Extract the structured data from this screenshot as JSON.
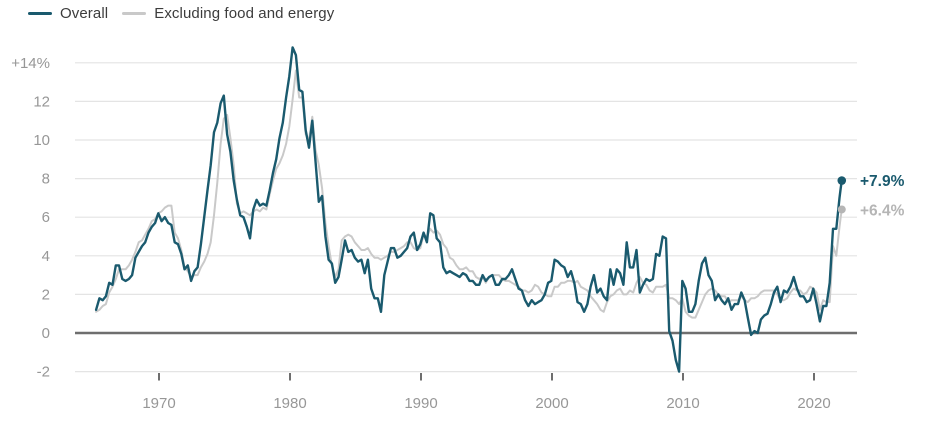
{
  "chart_data": {
    "type": "line",
    "description": "Year-over-year percent change in U.S. consumer prices, monthly, 1965 through February 2022",
    "x_axis": {
      "ticks": [
        1970,
        1980,
        1990,
        2000,
        2010,
        2020
      ],
      "range": [
        1964.6,
        2022.6
      ],
      "grid": false
    },
    "y_axis": {
      "ticks": [
        -2,
        0,
        2,
        4,
        6,
        8,
        10,
        12,
        14
      ],
      "tick_labels": [
        "-2",
        "0",
        "2",
        "4",
        "6",
        "8",
        "10",
        "12",
        "+14%"
      ],
      "range": [
        -2,
        14
      ],
      "grid": true,
      "zero_baseline": true
    },
    "x_rule": {
      "start": 1965.2,
      "step": 0.25,
      "tail_x": [
        2022.04,
        2022.12
      ]
    },
    "legend_position": "top-left",
    "series": [
      {
        "name": "Overall",
        "color": "#1a5a6e",
        "line_width": 2.4,
        "end_label": "+7.9%",
        "end_value": 7.9,
        "values": [
          1.2,
          1.8,
          1.7,
          1.9,
          2.6,
          2.5,
          3.5,
          3.5,
          2.8,
          2.7,
          2.8,
          3.0,
          3.9,
          4.2,
          4.5,
          4.7,
          5.2,
          5.5,
          5.7,
          6.2,
          5.8,
          6.0,
          5.7,
          5.6,
          4.7,
          4.6,
          4.1,
          3.3,
          3.5,
          2.7,
          3.2,
          3.4,
          4.6,
          6.0,
          7.4,
          8.7,
          10.4,
          10.9,
          11.9,
          12.3,
          10.3,
          9.4,
          7.9,
          6.9,
          6.1,
          6.0,
          5.5,
          4.9,
          6.4,
          6.9,
          6.6,
          6.7,
          6.6,
          7.4,
          8.3,
          9.0,
          10.1,
          10.9,
          12.2,
          13.3,
          14.8,
          14.4,
          12.6,
          12.5,
          10.5,
          9.6,
          11.0,
          8.9,
          6.8,
          7.1,
          5.0,
          3.8,
          3.6,
          2.6,
          2.9,
          3.8,
          4.8,
          4.2,
          4.3,
          3.9,
          3.7,
          3.8,
          3.1,
          3.8,
          2.3,
          1.8,
          1.8,
          1.1,
          3.0,
          3.7,
          4.4,
          4.4,
          3.9,
          4.0,
          4.2,
          4.4,
          5.0,
          5.2,
          4.3,
          4.6,
          5.2,
          4.7,
          6.2,
          6.1,
          4.9,
          4.7,
          3.4,
          3.1,
          3.2,
          3.1,
          3.0,
          2.9,
          3.1,
          3.0,
          2.7,
          2.7,
          2.5,
          2.5,
          3.0,
          2.7,
          2.9,
          3.0,
          2.5,
          2.5,
          2.8,
          2.8,
          3.0,
          3.3,
          2.8,
          2.3,
          2.2,
          1.7,
          1.4,
          1.7,
          1.5,
          1.6,
          1.7,
          2.0,
          2.6,
          2.7,
          3.8,
          3.7,
          3.5,
          3.4,
          2.9,
          3.2,
          2.6,
          1.6,
          1.5,
          1.1,
          1.5,
          2.4,
          3.0,
          2.1,
          2.3,
          1.9,
          1.7,
          3.3,
          2.5,
          3.3,
          3.1,
          2.5,
          4.7,
          3.4,
          3.4,
          4.3,
          2.1,
          2.5,
          2.8,
          2.7,
          2.8,
          4.1,
          4.0,
          5.0,
          4.9,
          0.1,
          -0.4,
          -1.4,
          -2.0,
          2.7,
          2.3,
          1.1,
          1.1,
          1.5,
          2.7,
          3.6,
          3.9,
          3.0,
          2.7,
          1.7,
          2.0,
          1.7,
          1.5,
          1.8,
          1.2,
          1.5,
          1.5,
          2.1,
          1.7,
          0.8,
          -0.1,
          0.1,
          0.0,
          0.7,
          0.9,
          1.0,
          1.5,
          2.1,
          2.4,
          1.6,
          2.2,
          2.1,
          2.4,
          2.9,
          2.3,
          1.9,
          1.9,
          1.6,
          1.7,
          2.3,
          1.5,
          0.6,
          1.4,
          1.4,
          2.6,
          5.4,
          5.4,
          7.0,
          7.5,
          7.9
        ]
      },
      {
        "name": "Excluding food and energy",
        "color": "#c9c9c9",
        "line_width": 2,
        "end_label": "+6.4%",
        "end_value": 6.4,
        "values": [
          1.1,
          1.2,
          1.4,
          1.5,
          2.1,
          2.4,
          2.8,
          3.3,
          3.3,
          3.3,
          3.5,
          3.8,
          4.2,
          4.7,
          4.8,
          5.1,
          5.4,
          5.8,
          5.9,
          6.2,
          6.3,
          6.5,
          6.6,
          6.6,
          5.2,
          4.9,
          4.3,
          3.4,
          3.2,
          2.9,
          3.0,
          3.0,
          3.4,
          3.7,
          4.1,
          4.7,
          6.1,
          7.8,
          9.8,
          11.1,
          11.3,
          10.1,
          8.7,
          6.7,
          6.2,
          6.3,
          6.2,
          6.1,
          6.3,
          6.4,
          6.3,
          6.5,
          6.4,
          7.2,
          7.9,
          8.5,
          8.8,
          9.2,
          9.8,
          10.7,
          12.1,
          13.6,
          12.2,
          12.2,
          10.3,
          10.0,
          11.2,
          9.5,
          8.7,
          7.5,
          5.7,
          4.5,
          3.5,
          2.9,
          3.3,
          4.8,
          5.0,
          5.1,
          5.0,
          4.7,
          4.5,
          4.3,
          4.3,
          4.4,
          4.1,
          3.9,
          3.9,
          3.8,
          3.9,
          4.0,
          4.2,
          4.2,
          4.3,
          4.4,
          4.5,
          4.7,
          4.7,
          4.4,
          4.3,
          4.4,
          5.1,
          5.0,
          5.4,
          5.2,
          5.3,
          5.1,
          4.6,
          4.4,
          3.9,
          3.8,
          3.5,
          3.3,
          3.3,
          3.4,
          3.2,
          3.2,
          2.9,
          2.8,
          2.9,
          2.6,
          2.9,
          3.0,
          3.0,
          3.0,
          2.8,
          2.7,
          2.7,
          2.6,
          2.5,
          2.4,
          2.2,
          2.2,
          2.1,
          2.2,
          2.5,
          2.4,
          2.1,
          2.0,
          1.9,
          1.9,
          2.4,
          2.4,
          2.6,
          2.6,
          2.7,
          2.7,
          2.6,
          2.7,
          2.4,
          2.3,
          2.2,
          1.9,
          1.7,
          1.5,
          1.2,
          1.1,
          1.6,
          1.9,
          2.0,
          2.2,
          2.3,
          2.0,
          2.0,
          2.2,
          2.1,
          2.6,
          2.9,
          2.6,
          2.5,
          2.2,
          2.1,
          2.4,
          2.4,
          2.4,
          2.5,
          1.8,
          1.8,
          1.7,
          1.5,
          1.8,
          1.1,
          0.9,
          0.8,
          0.8,
          1.2,
          1.6,
          2.0,
          2.2,
          2.3,
          2.2,
          2.0,
          1.9,
          1.9,
          1.6,
          1.7,
          1.7,
          1.7,
          1.9,
          1.7,
          1.6,
          1.8,
          1.8,
          1.9,
          2.1,
          2.2,
          2.2,
          2.2,
          2.2,
          2.0,
          1.7,
          1.7,
          1.8,
          2.1,
          2.3,
          2.2,
          2.2,
          2.0,
          2.1,
          2.4,
          2.3,
          2.1,
          1.2,
          1.7,
          1.6,
          1.6,
          4.5,
          4.0,
          5.5,
          6.0,
          6.4
        ]
      }
    ]
  },
  "colors": {
    "overall_line": "#1a5a6e",
    "core_line": "#c9c9c9",
    "core_end_label": "#b5b5b5",
    "grid": "#e4e4e4",
    "zero_line": "#6e6e6e",
    "tick": "#6e6e6e",
    "axis_text": "#979797",
    "legend_text": "#3c3c3c",
    "background": "#ffffff"
  }
}
